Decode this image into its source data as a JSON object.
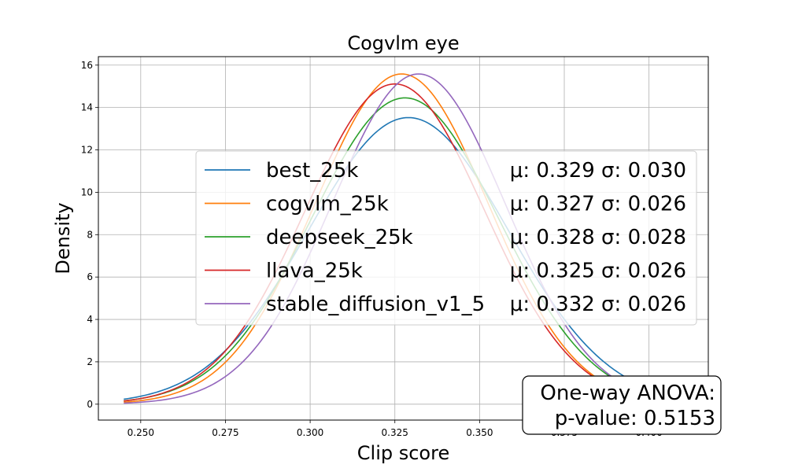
{
  "chart_data": {
    "type": "line",
    "title": "Cogvlm eye",
    "xlabel": "Clip score",
    "ylabel": "Density",
    "xlim": [
      0.2375,
      0.4175
    ],
    "ylim": [
      -0.75,
      16.4
    ],
    "x_ticks": [
      0.25,
      0.275,
      0.3,
      0.325,
      0.35,
      0.375,
      0.4
    ],
    "x_tick_labels": [
      "0.250",
      "0.275",
      "0.300",
      "0.325",
      "0.350",
      "0.375",
      "0.400"
    ],
    "y_ticks": [
      0,
      2,
      4,
      6,
      8,
      10,
      12,
      14,
      16
    ],
    "y_tick_labels": [
      "0",
      "2",
      "4",
      "6",
      "8",
      "10",
      "12",
      "14",
      "16"
    ],
    "grid": true,
    "legend_position": "center-right",
    "x_range": [
      0.245,
      0.41
    ],
    "series": [
      {
        "name": "best_25k",
        "stats": "μ: 0.329 σ: 0.030",
        "mu": 0.329,
        "sigma": 0.0295,
        "color": "#1f77b4"
      },
      {
        "name": "cogvlm_25k",
        "stats": "μ: 0.327 σ: 0.026",
        "mu": 0.327,
        "sigma": 0.0256,
        "color": "#ff7f0e"
      },
      {
        "name": "deepseek_25k",
        "stats": "μ: 0.328 σ: 0.028",
        "mu": 0.328,
        "sigma": 0.0276,
        "color": "#2ca02c"
      },
      {
        "name": "llava_25k",
        "stats": "μ: 0.325 σ: 0.026",
        "mu": 0.325,
        "sigma": 0.0264,
        "color": "#d62728"
      },
      {
        "name": "stable_diffusion_v1_5",
        "stats": "μ: 0.332 σ: 0.026",
        "mu": 0.332,
        "sigma": 0.0256,
        "color": "#9467bd"
      }
    ],
    "annotation": {
      "line1": "One-way ANOVA:",
      "line2": "p-value: 0.5153"
    }
  }
}
